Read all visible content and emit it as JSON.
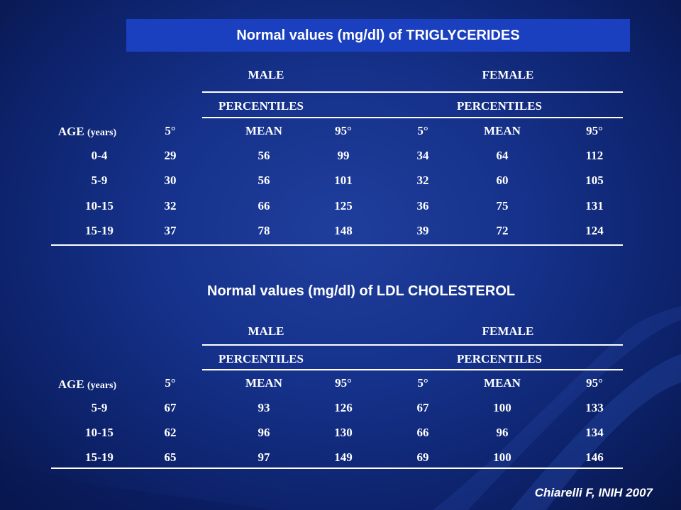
{
  "triglycerides": {
    "title": "Normal values (mg/dl) of TRIGLYCERIDES",
    "male_label": "MALE",
    "female_label": "FEMALE",
    "percentiles_label_male": "PERCENTILES",
    "percentiles_label_female": "PERCENTILES",
    "age_label": "AGE",
    "age_unit": "(years)",
    "columns": [
      "5°",
      "MEAN",
      "95°",
      "5°",
      "MEAN",
      "95°"
    ],
    "rows": [
      {
        "age": "0-4",
        "values": [
          "29",
          "56",
          "99",
          "34",
          "64",
          "112"
        ]
      },
      {
        "age": "5-9",
        "values": [
          "30",
          "56",
          "101",
          "32",
          "60",
          "105"
        ]
      },
      {
        "age": "10-15",
        "values": [
          "32",
          "66",
          "125",
          "36",
          "75",
          "131"
        ]
      },
      {
        "age": "15-19",
        "values": [
          "37",
          "78",
          "148",
          "39",
          "72",
          "124"
        ]
      }
    ]
  },
  "ldl": {
    "title": "Normal values (mg/dl) of LDL CHOLESTEROL",
    "male_label": "MALE",
    "female_label": "FEMALE",
    "percentiles_label_male": "PERCENTILES",
    "percentiles_label_female": "PERCENTILES",
    "age_label": "AGE",
    "age_unit": "(years)",
    "columns": [
      "5°",
      "MEAN",
      "95°",
      "5°",
      "MEAN",
      "95°"
    ],
    "rows": [
      {
        "age": "5-9",
        "values": [
          "67",
          "93",
          "126",
          "67",
          "100",
          "133"
        ]
      },
      {
        "age": "10-15",
        "values": [
          "62",
          "96",
          "130",
          "66",
          "96",
          "134"
        ]
      },
      {
        "age": "15-19",
        "values": [
          "65",
          "97",
          "149",
          "69",
          "100",
          "146"
        ]
      }
    ]
  },
  "citation": "Chiarelli F, INIH 2007",
  "colors": {
    "background": "#15318a",
    "title_box": "#1a3fbf",
    "text": "#ffffff"
  }
}
